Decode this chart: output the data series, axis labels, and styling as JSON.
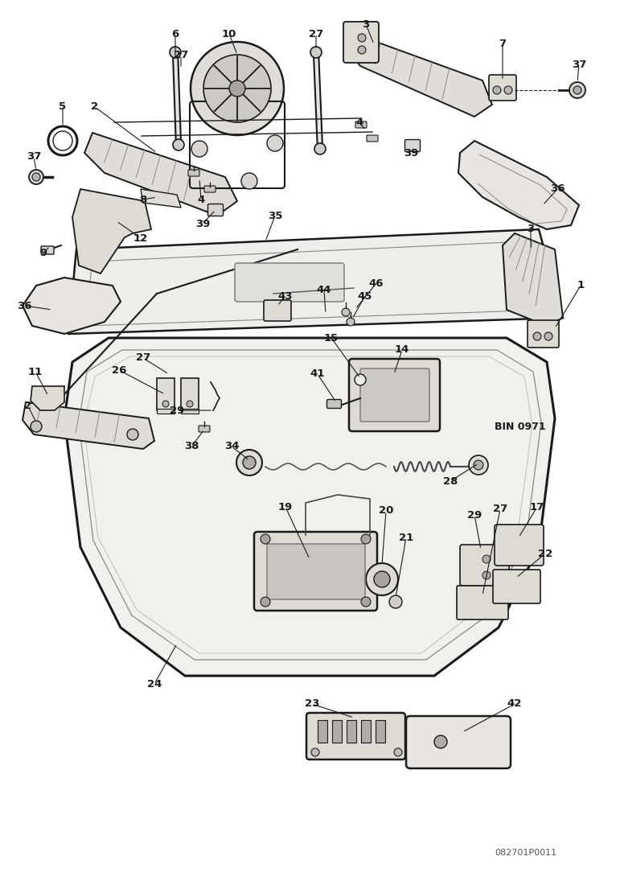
{
  "background_color": "#ffffff",
  "line_color": "#1a1a1a",
  "watermark_color": "#f0b0b0",
  "watermark_subtext_color": "#d09090",
  "label_fontsize": 9.5,
  "bin_text": "BIN 0971",
  "part_number": "082701P0011",
  "fig_width": 7.71,
  "fig_height": 11.0,
  "dpi": 100
}
